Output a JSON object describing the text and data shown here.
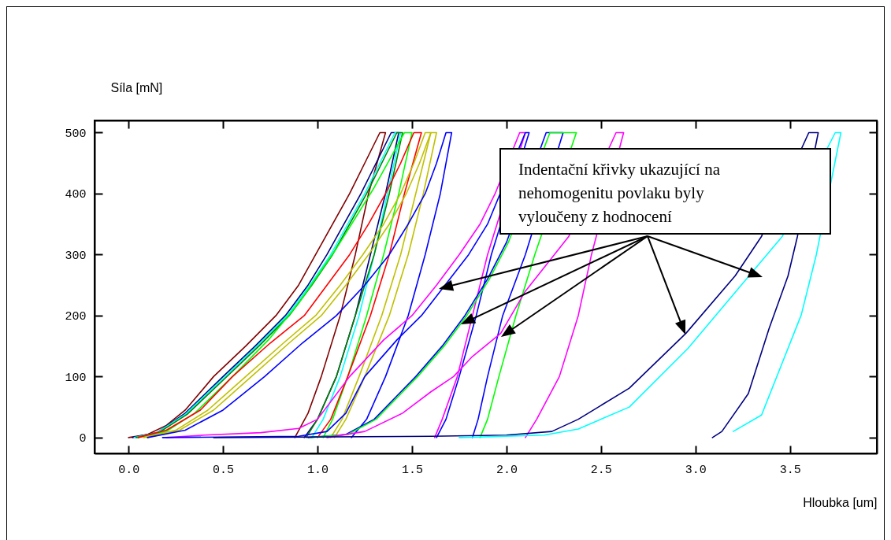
{
  "chart_data": {
    "type": "line",
    "xlabel": "Hloubka [um]",
    "ylabel": "Síla  [mN]",
    "xlim": [
      -0.18,
      3.96
    ],
    "ylim": [
      -26,
      520
    ],
    "xticks": [
      {
        "value": 0,
        "label": "0.0"
      },
      0.5,
      {
        "value": 1,
        "label": "1.0"
      },
      1.5,
      {
        "value": 2,
        "label": "2.0"
      },
      2.5,
      {
        "value": 3,
        "label": "3.0"
      },
      3.5
    ],
    "yticks": [
      0,
      100,
      200,
      300,
      400,
      500
    ],
    "grid": false,
    "legend": false,
    "annotations": [
      "Indentační křivky ukazující na nehomogenitu povlaku byly vyloučeny z hodnocení"
    ],
    "series": [
      {
        "color": "#800000",
        "x": [
          0,
          0.1,
          0.2,
          0.3,
          0.45,
          0.62,
          0.78,
          0.9,
          0.99,
          1.08,
          1.17,
          1.25,
          1.33,
          1.36,
          1.27,
          1.2,
          1.12,
          1.02,
          0.95,
          0.88
        ],
        "values": [
          0,
          5,
          20,
          45,
          100,
          150,
          200,
          250,
          300,
          350,
          400,
          450,
          500,
          500,
          400,
          300,
          200,
          100,
          40,
          0
        ]
      },
      {
        "color": "#000080",
        "x": [
          0.02,
          0.15,
          0.3,
          0.5,
          0.67,
          0.83,
          0.95,
          1.05,
          1.14,
          1.23,
          1.31,
          1.39,
          1.43,
          1.36,
          1.28,
          1.2,
          1.1,
          1.0,
          0.93
        ],
        "values": [
          0,
          8,
          40,
          100,
          150,
          200,
          250,
          300,
          350,
          400,
          450,
          500,
          500,
          400,
          300,
          200,
          100,
          30,
          0
        ]
      },
      {
        "color": "#00ffff",
        "x": [
          0.03,
          0.15,
          0.3,
          0.5,
          0.68,
          0.84,
          0.96,
          1.07,
          1.16,
          1.25,
          1.33,
          1.41,
          1.44,
          1.37,
          1.3,
          1.22,
          1.12,
          1.03,
          0.97
        ],
        "values": [
          0,
          8,
          38,
          97,
          150,
          200,
          250,
          300,
          350,
          400,
          450,
          500,
          500,
          400,
          300,
          200,
          100,
          30,
          0
        ]
      },
      {
        "color": "#008000",
        "x": [
          0.04,
          0.16,
          0.31,
          0.51,
          0.69,
          0.85,
          0.97,
          1.08,
          1.17,
          1.26,
          1.34,
          1.42,
          1.45,
          1.38,
          1.3,
          1.2,
          1.1,
          1.0,
          0.94
        ],
        "values": [
          0,
          8,
          38,
          97,
          150,
          200,
          250,
          300,
          350,
          400,
          450,
          500,
          500,
          400,
          300,
          200,
          100,
          30,
          0
        ]
      },
      {
        "color": "#00ff00",
        "x": [
          0.05,
          0.2,
          0.35,
          0.55,
          0.74,
          0.9,
          1.0,
          1.1,
          1.2,
          1.3,
          1.38,
          1.46,
          1.5,
          1.43,
          1.35,
          1.26,
          1.16,
          1.08,
          1.03
        ],
        "values": [
          0,
          10,
          40,
          100,
          160,
          220,
          265,
          310,
          360,
          410,
          455,
          500,
          500,
          400,
          300,
          200,
          100,
          30,
          0
        ]
      },
      {
        "color": "#ff0000",
        "x": [
          0.05,
          0.2,
          0.38,
          0.55,
          0.75,
          0.93,
          1.05,
          1.17,
          1.27,
          1.36,
          1.44,
          1.51,
          1.55,
          1.46,
          1.38,
          1.28,
          1.16,
          1.07,
          1.0
        ],
        "values": [
          0,
          12,
          45,
          100,
          155,
          200,
          250,
          300,
          350,
          400,
          450,
          500,
          500,
          400,
          300,
          200,
          100,
          30,
          0
        ]
      },
      {
        "color": "#c0c000",
        "x": [
          0.08,
          0.25,
          0.42,
          0.62,
          0.82,
          0.99,
          1.12,
          1.24,
          1.35,
          1.44,
          1.51,
          1.57,
          1.6,
          1.52,
          1.44,
          1.34,
          1.22,
          1.13,
          1.07
        ],
        "values": [
          0,
          12,
          45,
          100,
          155,
          200,
          250,
          300,
          350,
          400,
          450,
          500,
          500,
          400,
          300,
          200,
          100,
          30,
          0
        ]
      },
      {
        "color": "#c0c000",
        "x": [
          0.1,
          0.27,
          0.45,
          0.65,
          0.85,
          1.02,
          1.15,
          1.27,
          1.38,
          1.47,
          1.54,
          1.6,
          1.63,
          1.56,
          1.48,
          1.38,
          1.25,
          1.15,
          1.09
        ],
        "values": [
          0,
          12,
          45,
          100,
          155,
          200,
          250,
          300,
          350,
          400,
          450,
          500,
          500,
          400,
          300,
          200,
          100,
          30,
          0
        ]
      },
      {
        "color": "#0000ff",
        "x": [
          0.1,
          0.3,
          0.5,
          0.72,
          0.92,
          1.1,
          1.25,
          1.38,
          1.48,
          1.57,
          1.63,
          1.68,
          1.71,
          1.65,
          1.57,
          1.48,
          1.36,
          1.26,
          1.18
        ],
        "values": [
          0,
          12,
          45,
          100,
          155,
          200,
          250,
          300,
          350,
          400,
          450,
          500,
          500,
          400,
          300,
          200,
          100,
          30,
          0
        ]
      },
      {
        "color": "#ff00ff",
        "x": [
          0.2,
          0.4,
          0.7,
          0.9,
          1.0,
          1.17,
          1.35,
          1.5,
          1.63,
          1.75,
          1.86,
          1.94,
          2.07,
          2.1,
          1.9,
          1.82,
          1.74,
          1.66,
          1.62
        ],
        "values": [
          0,
          4,
          8,
          15,
          30,
          100,
          160,
          200,
          250,
          300,
          350,
          400,
          500,
          500,
          300,
          200,
          100,
          30,
          0
        ]
      },
      {
        "color": "#0000ff",
        "x": [
          0.18,
          0.9,
          1.05,
          1.15,
          1.25,
          1.42,
          1.55,
          1.8,
          1.9,
          2.1,
          2.12,
          1.92,
          1.84,
          1.75,
          1.68,
          1.63
        ],
        "values": [
          0,
          2,
          10,
          40,
          100,
          160,
          200,
          300,
          350,
          500,
          500,
          300,
          200,
          100,
          30,
          0
        ]
      },
      {
        "color": "#0000ff",
        "x": [
          0.95,
          1.15,
          1.3,
          1.52,
          1.66,
          1.78,
          1.9,
          2.0,
          2.21,
          2.3,
          2.1,
          1.98,
          1.9,
          1.85,
          1.82
        ],
        "values": [
          0,
          5,
          30,
          100,
          150,
          200,
          260,
          320,
          500,
          500,
          300,
          200,
          100,
          30,
          0
        ]
      },
      {
        "color": "#00ff00",
        "x": [
          0.96,
          1.16,
          1.31,
          1.53,
          1.67,
          1.79,
          1.91,
          2.01,
          2.23,
          2.37,
          2.15,
          2.05,
          1.96,
          1.9,
          1.86
        ],
        "values": [
          0,
          5,
          30,
          100,
          150,
          200,
          260,
          320,
          500,
          500,
          300,
          200,
          100,
          30,
          0
        ]
      },
      {
        "color": "#ff00ff",
        "x": [
          1.05,
          1.25,
          1.45,
          1.6,
          1.72,
          1.82,
          1.97,
          2.1,
          2.33,
          2.58,
          2.62,
          2.45,
          2.38,
          2.28,
          2.16,
          2.1
        ],
        "values": [
          0,
          10,
          40,
          75,
          100,
          133,
          171,
          240,
          330,
          500,
          500,
          300,
          200,
          100,
          30,
          0
        ]
      },
      {
        "color": "#000080",
        "x": [
          0.45,
          1.6,
          2.0,
          2.24,
          2.38,
          2.65,
          2.95,
          3.21,
          3.35,
          3.6,
          3.65,
          3.54,
          3.49,
          3.39,
          3.28,
          3.14,
          3.09
        ],
        "values": [
          0,
          2,
          4,
          10,
          30,
          81,
          171,
          265,
          330,
          500,
          500,
          330,
          265,
          179,
          72,
          10,
          0
        ]
      },
      {
        "color": "#00ffff",
        "x": [
          1.75,
          2.2,
          2.38,
          2.65,
          2.96,
          3.46,
          3.74,
          3.77,
          3.64,
          3.56,
          3.45,
          3.35,
          3.2
        ],
        "values": [
          0,
          4,
          14,
          50,
          146,
          330,
          500,
          500,
          300,
          201,
          115,
          37,
          10
        ]
      }
    ]
  }
}
